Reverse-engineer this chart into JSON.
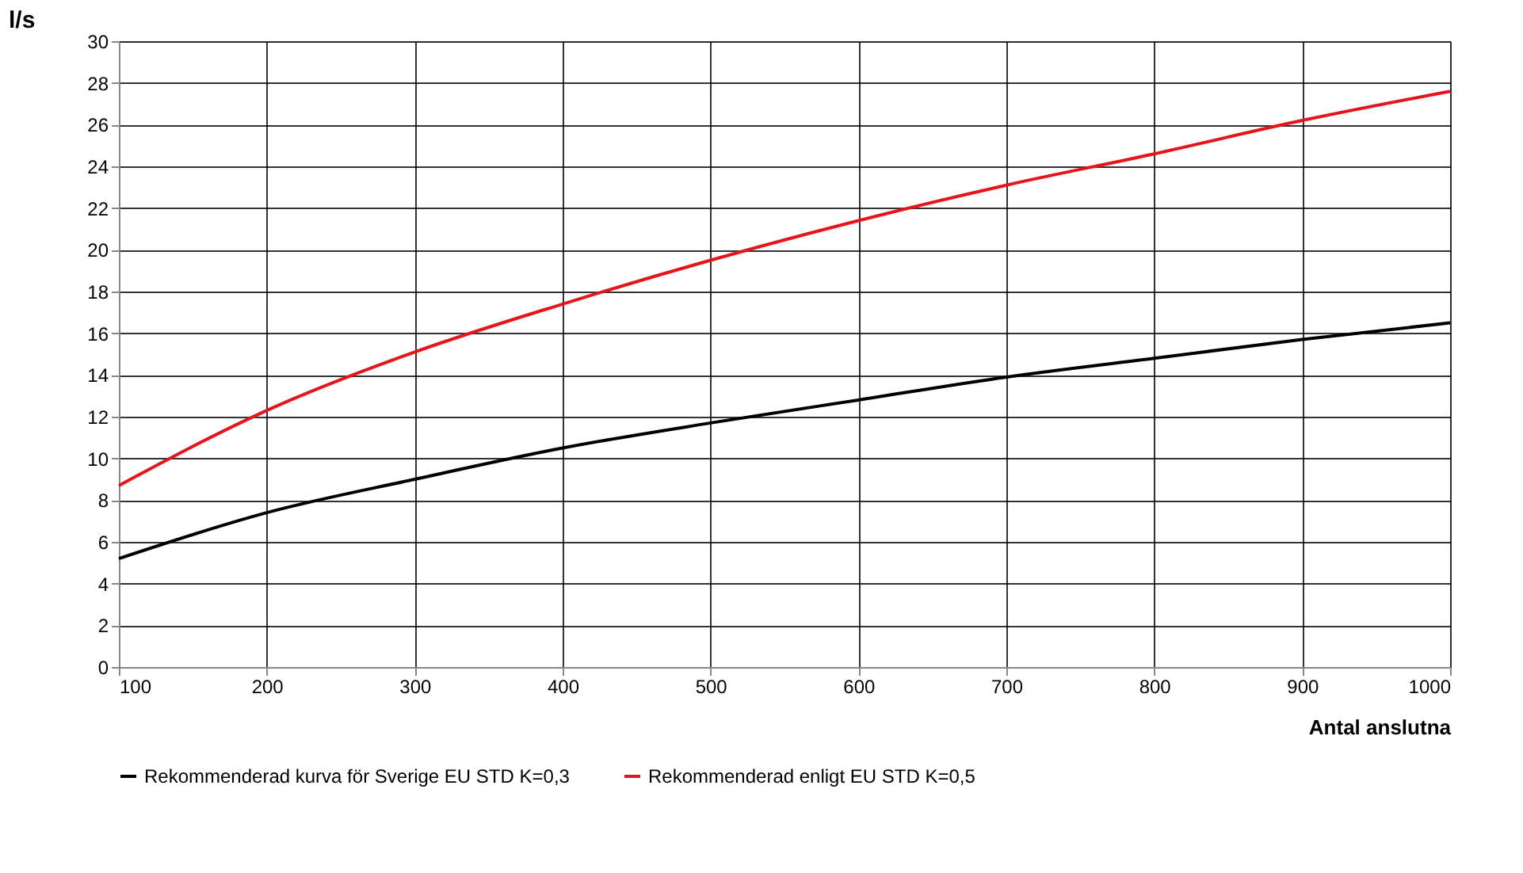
{
  "chart_data": {
    "type": "line",
    "xlabel": "Antal anslutna",
    "ylabel": "l/s",
    "x": [
      100,
      200,
      300,
      400,
      500,
      600,
      700,
      800,
      900,
      1000
    ],
    "series": [
      {
        "name": "Rekommenderad kurva för Sverige EU STD K=0,3",
        "color": "#000000",
        "values": [
          5.2,
          7.4,
          9.0,
          10.5,
          11.7,
          12.8,
          13.9,
          14.8,
          15.7,
          16.5
        ]
      },
      {
        "name": "Rekommenderad enligt EU STD K=0,5",
        "color": "#e8141c",
        "values": [
          8.7,
          12.3,
          15.1,
          17.4,
          19.5,
          21.4,
          23.1,
          24.6,
          26.2,
          27.6
        ]
      }
    ],
    "xlim": [
      100,
      1000
    ],
    "xticks": [
      100,
      200,
      300,
      400,
      500,
      600,
      700,
      800,
      900,
      1000
    ],
    "ylim": [
      0,
      30
    ],
    "yticks": [
      0,
      2,
      4,
      6,
      8,
      10,
      12,
      14,
      16,
      18,
      20,
      22,
      24,
      26,
      28,
      30
    ],
    "grid": true,
    "legend": "bottom",
    "marker": "none",
    "line_style": "solid"
  }
}
